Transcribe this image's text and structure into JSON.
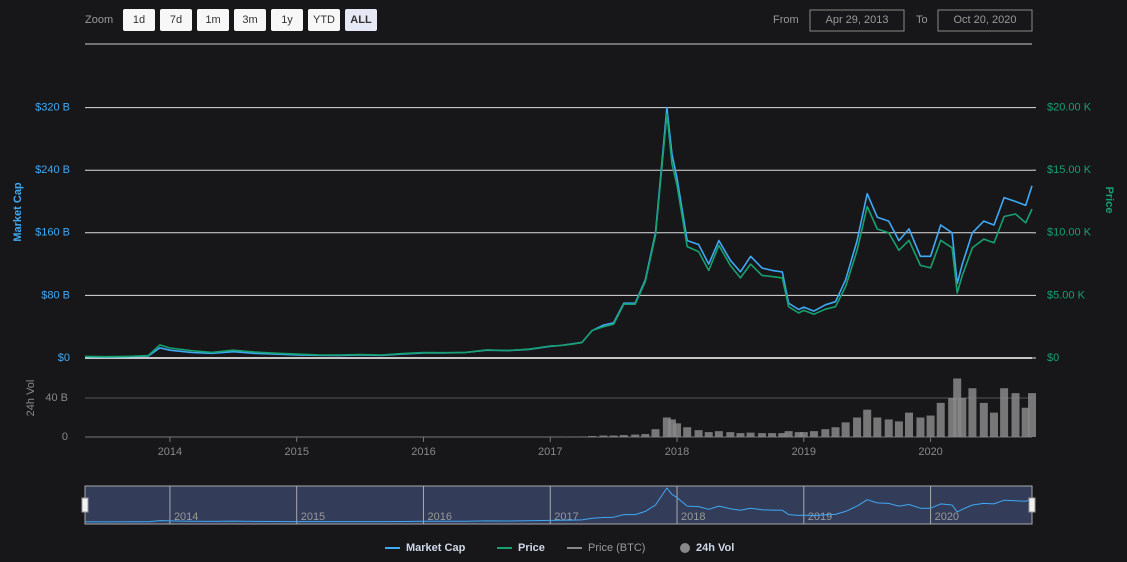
{
  "toolbar": {
    "zoom_label": "Zoom",
    "buttons": [
      "1d",
      "7d",
      "1m",
      "3m",
      "1y",
      "YTD",
      "ALL"
    ],
    "active_button": "ALL",
    "from_label": "From",
    "from": "Apr 29, 2013",
    "to_label": "To",
    "to": "Oct 20, 2020"
  },
  "chart_data": {
    "type": "line",
    "x": [
      2013.33,
      2013.5,
      2013.67,
      2013.83,
      2013.92,
      2014,
      2014.17,
      2014.33,
      2014.5,
      2014.67,
      2014.83,
      2015,
      2015.17,
      2015.33,
      2015.5,
      2015.67,
      2015.83,
      2016,
      2016.17,
      2016.33,
      2016.5,
      2016.67,
      2016.83,
      2017,
      2017.08,
      2017.17,
      2017.25,
      2017.33,
      2017.42,
      2017.5,
      2017.58,
      2017.67,
      2017.75,
      2017.83,
      2017.92,
      2017.96,
      2018,
      2018.08,
      2018.17,
      2018.25,
      2018.33,
      2018.42,
      2018.5,
      2018.58,
      2018.67,
      2018.75,
      2018.83,
      2018.88,
      2018.96,
      2019,
      2019.08,
      2019.17,
      2019.25,
      2019.33,
      2019.42,
      2019.5,
      2019.58,
      2019.67,
      2019.75,
      2019.83,
      2019.92,
      2020,
      2020.08,
      2020.17,
      2020.21,
      2020.25,
      2020.33,
      2020.42,
      2020.5,
      2020.58,
      2020.67,
      2020.75,
      2020.8
    ],
    "xlim": [
      2013.33,
      2020.8
    ],
    "xticks": [
      2014,
      2015,
      2016,
      2017,
      2018,
      2019,
      2020
    ],
    "ylabel": "Market Cap",
    "y2label": "Price",
    "y3label": "24h Vol",
    "ylim": [
      0,
      400
    ],
    "yticks": [
      {
        "value": 0,
        "label": "$0"
      },
      {
        "value": 80,
        "label": "$80 B"
      },
      {
        "value": 160,
        "label": "$160 B"
      },
      {
        "value": 240,
        "label": "$240 B"
      },
      {
        "value": 320,
        "label": "$320 B"
      }
    ],
    "y2lim": [
      0,
      25
    ],
    "y2ticks": [
      {
        "value": 0,
        "label": "$0"
      },
      {
        "value": 5,
        "label": "$5.00 K"
      },
      {
        "value": 10,
        "label": "$10.00 K"
      },
      {
        "value": 15,
        "label": "$15.00 K"
      },
      {
        "value": 20,
        "label": "$20.00 K"
      }
    ],
    "y3lim": [
      0,
      80
    ],
    "y3ticks": [
      0,
      {
        "value": 40,
        "label": "40 B"
      }
    ],
    "grid": true,
    "series": [
      {
        "name": "Market Cap",
        "color": "#3fa9f5",
        "values": [
          1.5,
          1.1,
          1.5,
          2.5,
          13,
          10,
          7,
          6,
          8,
          6,
          5,
          4,
          3.5,
          3.3,
          3.8,
          3.4,
          5,
          6.5,
          6.5,
          7,
          10,
          9.5,
          11,
          15,
          16,
          18,
          20,
          35,
          42,
          45,
          70,
          70,
          100,
          160,
          320,
          260,
          230,
          150,
          145,
          120,
          150,
          125,
          110,
          130,
          115,
          112,
          110,
          70,
          62,
          65,
          60,
          68,
          72,
          100,
          150,
          210,
          180,
          175,
          150,
          165,
          130,
          130,
          170,
          160,
          95,
          120,
          160,
          175,
          170,
          205,
          200,
          195,
          220
        ]
      },
      {
        "name": "Price",
        "color": "#16a06e",
        "axis": "y2",
        "values": [
          0.13,
          0.1,
          0.13,
          0.2,
          1.05,
          0.8,
          0.58,
          0.45,
          0.62,
          0.48,
          0.38,
          0.31,
          0.25,
          0.24,
          0.27,
          0.24,
          0.35,
          0.43,
          0.42,
          0.45,
          0.65,
          0.6,
          0.7,
          0.96,
          1.0,
          1.1,
          1.25,
          2.2,
          2.5,
          2.7,
          4.3,
          4.3,
          6.1,
          9.8,
          19.5,
          15.5,
          13.8,
          8.9,
          8.5,
          7.0,
          9.0,
          7.4,
          6.4,
          7.5,
          6.6,
          6.5,
          6.4,
          4.1,
          3.6,
          3.8,
          3.5,
          3.9,
          4.1,
          5.7,
          8.6,
          12.1,
          10.3,
          10.0,
          8.6,
          9.4,
          7.4,
          7.2,
          9.4,
          8.8,
          5.2,
          6.6,
          8.8,
          9.5,
          9.2,
          11.3,
          11.5,
          10.8,
          11.9
        ]
      },
      {
        "name": "Price (BTC)",
        "color": "#888888",
        "hidden": true
      },
      {
        "name": "24h Vol",
        "color": "#888888",
        "type": "bar",
        "axis": "y3",
        "values": [
          0.02,
          0.02,
          0.02,
          0.05,
          0.1,
          0.1,
          0.05,
          0.05,
          0.05,
          0.05,
          0.05,
          0.05,
          0.05,
          0.05,
          0.05,
          0.05,
          0.1,
          0.1,
          0.1,
          0.1,
          0.1,
          0.1,
          0.1,
          0.2,
          0.2,
          0.3,
          0.4,
          1,
          1.5,
          1.5,
          2,
          2.5,
          3,
          8,
          20,
          18,
          14,
          10,
          7,
          5,
          6,
          5,
          4,
          4.5,
          4,
          4,
          4,
          6,
          5,
          5,
          6,
          8,
          10,
          15,
          20,
          28,
          20,
          18,
          16,
          25,
          20,
          22,
          35,
          40,
          60,
          40,
          50,
          35,
          25,
          50,
          45,
          30,
          45
        ]
      }
    ]
  }
}
